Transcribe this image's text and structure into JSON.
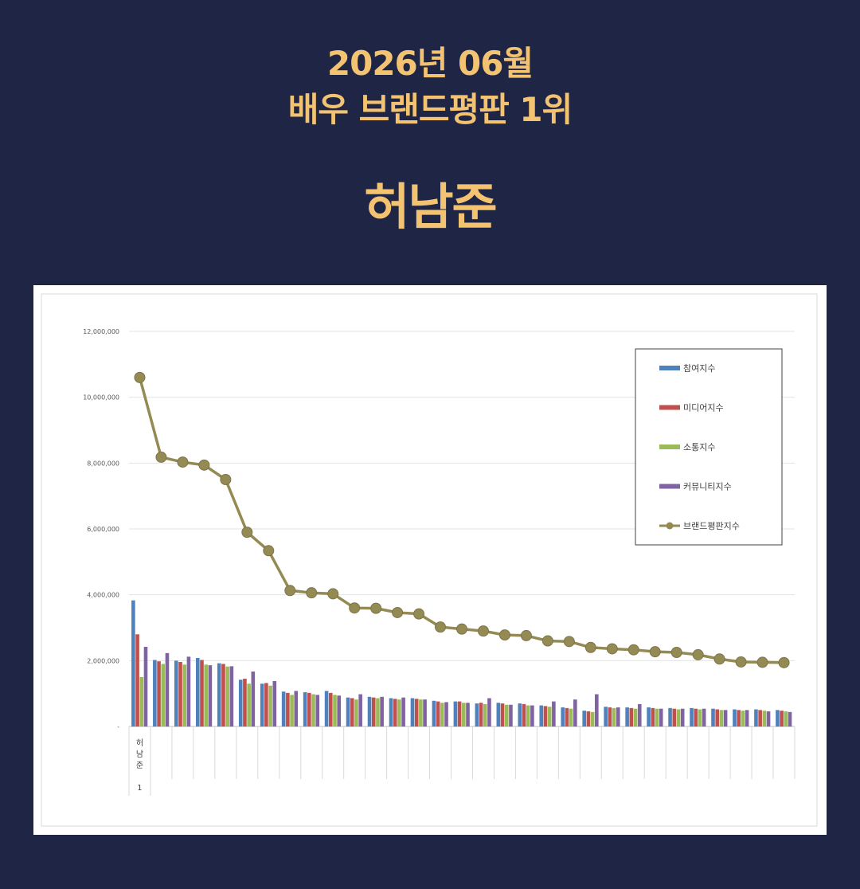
{
  "header": {
    "line1": "2026년 06월",
    "line2": "배우 브랜드평판 1위",
    "winner": "허남준"
  },
  "colors": {
    "background": "#1f2645",
    "headline": "#f3c372",
    "participation": "#4f81bd",
    "media": "#c0504d",
    "communication": "#9bbb59",
    "community": "#8064a2",
    "brand": "#948a54"
  },
  "chart_data": {
    "type": "bar",
    "title": "",
    "xlabel": "",
    "ylabel": "",
    "ylim": [
      0,
      12000000
    ],
    "yticks": [
      "-",
      "2,000,000",
      "4,000,000",
      "6,000,000",
      "8,000,000",
      "10,000,000",
      "12,000,000"
    ],
    "grid": true,
    "legend_position": "top-right",
    "categories": [
      "허남준",
      "",
      "",
      "",
      "",
      "",
      "",
      "",
      "",
      "",
      "",
      "",
      "",
      "",
      "",
      "",
      "",
      "",
      "",
      "",
      "",
      "",
      "",
      "",
      "",
      "",
      "",
      "",
      "",
      "",
      ""
    ],
    "category_rank": "1",
    "series": [
      {
        "name": "참여지수",
        "type": "bar",
        "values": [
          3830000,
          2020000,
          2000000,
          2080000,
          1920000,
          1420000,
          1300000,
          1060000,
          1040000,
          1080000,
          880000,
          900000,
          860000,
          860000,
          780000,
          760000,
          700000,
          720000,
          700000,
          640000,
          580000,
          480000,
          600000,
          580000,
          580000,
          560000,
          560000,
          540000,
          520000,
          520000,
          500000
        ]
      },
      {
        "name": "미디어지수",
        "type": "bar",
        "values": [
          2800000,
          1980000,
          1960000,
          2020000,
          1900000,
          1450000,
          1320000,
          1020000,
          1020000,
          1020000,
          860000,
          880000,
          840000,
          840000,
          760000,
          760000,
          720000,
          700000,
          680000,
          620000,
          560000,
          460000,
          580000,
          560000,
          560000,
          540000,
          540000,
          520000,
          500000,
          500000,
          480000
        ]
      },
      {
        "name": "소통지수",
        "type": "bar",
        "values": [
          1500000,
          1900000,
          1880000,
          1880000,
          1820000,
          1300000,
          1240000,
          960000,
          980000,
          960000,
          820000,
          860000,
          820000,
          820000,
          720000,
          720000,
          680000,
          660000,
          640000,
          600000,
          540000,
          440000,
          560000,
          540000,
          540000,
          520000,
          520000,
          500000,
          480000,
          480000,
          460000
        ]
      },
      {
        "name": "커뮤니티지수",
        "type": "bar",
        "values": [
          2420000,
          2230000,
          2120000,
          1860000,
          1830000,
          1670000,
          1380000,
          1080000,
          960000,
          940000,
          980000,
          900000,
          880000,
          820000,
          740000,
          720000,
          860000,
          660000,
          640000,
          760000,
          820000,
          980000,
          580000,
          680000,
          540000,
          540000,
          540000,
          500000,
          500000,
          460000,
          440000
        ]
      },
      {
        "name": "브랜드평판지수",
        "type": "line",
        "values": [
          10600000,
          8180000,
          8030000,
          7940000,
          7500000,
          5900000,
          5340000,
          4130000,
          4060000,
          4030000,
          3600000,
          3590000,
          3460000,
          3420000,
          3020000,
          2960000,
          2900000,
          2780000,
          2760000,
          2600000,
          2580000,
          2400000,
          2360000,
          2330000,
          2270000,
          2250000,
          2180000,
          2050000,
          1960000,
          1950000,
          1940000
        ]
      }
    ]
  }
}
